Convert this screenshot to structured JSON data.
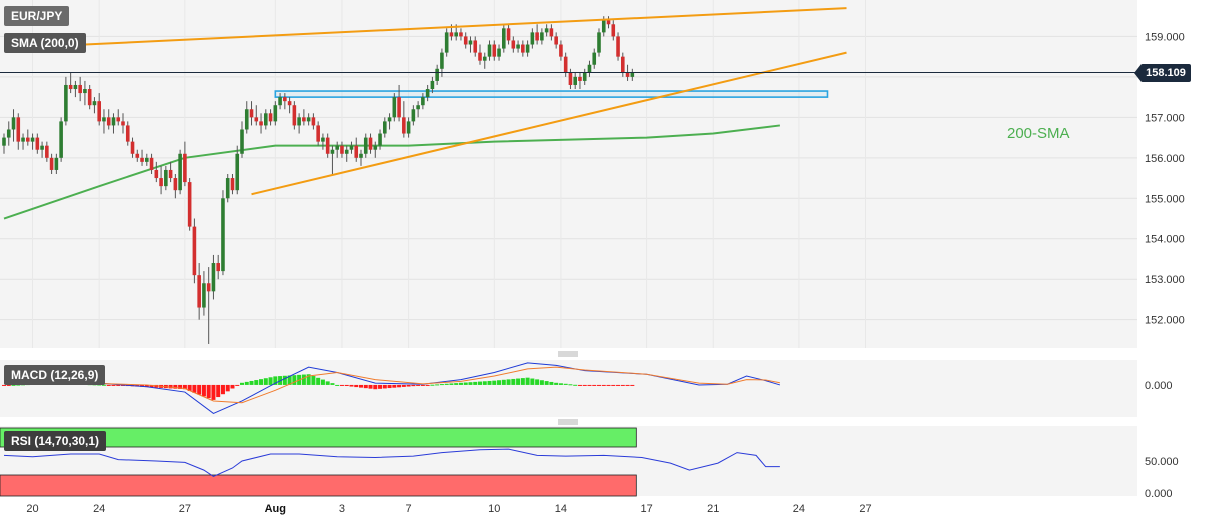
{
  "symbol_label": "EUR/JPY",
  "sma_indicator_label": "SMA (200,0)",
  "macd_indicator_label": "MACD (12,26,9)",
  "rsi_indicator_label": "RSI (14,70,30,1)",
  "current_price": "158.109",
  "sma_annotation": "200-SMA",
  "colors": {
    "bull": "#2e7d32",
    "bear": "#d32f2f",
    "sma": "#4caf50",
    "trendline": "#f39c12",
    "zone": "#29a3e0",
    "macd_line": "#1e3ad6",
    "signal_line": "#f07b2d",
    "hist_pos": "#27d827",
    "hist_neg": "#ff1a1a",
    "rsi_line": "#2a3bd8",
    "overbought": "#66ee66",
    "oversold": "#ff6b6b",
    "panel_bg": "#f4f4f4"
  },
  "chart_data": [
    {
      "type": "candlestick",
      "title": "EUR/JPY",
      "ylim": [
        151.3,
        159.9
      ],
      "y_ticks": [
        "152.000",
        "153.000",
        "154.000",
        "155.000",
        "156.000",
        "157.000",
        "158.000",
        "159.000"
      ],
      "x_ticks": [
        {
          "label": "20",
          "bar": 6
        },
        {
          "label": "24",
          "bar": 20
        },
        {
          "label": "27",
          "bar": 38
        },
        {
          "label": "Aug",
          "bar": 57
        },
        {
          "label": "3",
          "bar": 71
        },
        {
          "label": "7",
          "bar": 85
        },
        {
          "label": "10",
          "bar": 103
        },
        {
          "label": "14",
          "bar": 117
        },
        {
          "label": "17",
          "bar": 135
        },
        {
          "label": "21",
          "bar": 149
        },
        {
          "label": "24",
          "bar": 167
        },
        {
          "label": "27",
          "bar": 181
        }
      ],
      "candles": [
        [
          156.3,
          156.6,
          156.1,
          156.5
        ],
        [
          156.5,
          156.9,
          156.3,
          156.7
        ],
        [
          156.7,
          157.2,
          156.4,
          157.0
        ],
        [
          157.0,
          157.1,
          156.2,
          156.4
        ],
        [
          156.4,
          156.6,
          156.2,
          156.5
        ],
        [
          156.5,
          156.7,
          156.3,
          156.4
        ],
        [
          156.4,
          156.6,
          156.2,
          156.5
        ],
        [
          156.5,
          156.6,
          156.1,
          156.2
        ],
        [
          156.2,
          156.4,
          156.0,
          156.3
        ],
        [
          156.3,
          156.4,
          155.9,
          156.0
        ],
        [
          156.0,
          156.1,
          155.6,
          155.7
        ],
        [
          155.7,
          156.1,
          155.6,
          156.0
        ],
        [
          156.0,
          157.0,
          155.9,
          156.9
        ],
        [
          156.9,
          158.0,
          156.8,
          157.8
        ],
        [
          157.8,
          158.1,
          157.6,
          157.7
        ],
        [
          157.7,
          157.9,
          157.5,
          157.8
        ],
        [
          157.8,
          158.0,
          157.4,
          157.6
        ],
        [
          157.6,
          157.9,
          157.3,
          157.7
        ],
        [
          157.7,
          157.8,
          157.2,
          157.3
        ],
        [
          157.3,
          157.5,
          157.1,
          157.4
        ],
        [
          157.4,
          157.6,
          156.8,
          156.9
        ],
        [
          156.9,
          157.2,
          156.6,
          157.0
        ],
        [
          157.0,
          157.2,
          156.7,
          156.8
        ],
        [
          156.8,
          157.1,
          156.6,
          157.0
        ],
        [
          157.0,
          157.2,
          156.8,
          156.9
        ],
        [
          156.9,
          157.1,
          156.6,
          156.8
        ],
        [
          156.8,
          156.9,
          156.3,
          156.4
        ],
        [
          156.4,
          156.5,
          156.0,
          156.1
        ],
        [
          156.1,
          156.2,
          155.9,
          156.0
        ],
        [
          156.0,
          156.2,
          155.8,
          155.9
        ],
        [
          155.9,
          156.1,
          155.8,
          156.0
        ],
        [
          156.0,
          156.1,
          155.6,
          155.7
        ],
        [
          155.7,
          155.9,
          155.4,
          155.5
        ],
        [
          155.5,
          155.8,
          155.1,
          155.3
        ],
        [
          155.3,
          155.8,
          155.2,
          155.7
        ],
        [
          155.7,
          155.9,
          155.4,
          155.5
        ],
        [
          155.5,
          155.6,
          155.0,
          155.2
        ],
        [
          155.2,
          156.2,
          155.1,
          156.1
        ],
        [
          156.1,
          156.4,
          155.3,
          155.4
        ],
        [
          155.4,
          155.5,
          154.2,
          154.3
        ],
        [
          154.3,
          154.5,
          152.9,
          153.1
        ],
        [
          153.1,
          153.4,
          152.0,
          152.3
        ],
        [
          152.3,
          153.2,
          152.1,
          152.9
        ],
        [
          152.9,
          153.3,
          151.4,
          152.7
        ],
        [
          152.7,
          153.6,
          152.5,
          153.4
        ],
        [
          153.4,
          153.6,
          153.0,
          153.2
        ],
        [
          153.2,
          155.2,
          153.1,
          155.0
        ],
        [
          155.0,
          155.6,
          154.9,
          155.5
        ],
        [
          155.5,
          155.6,
          155.1,
          155.2
        ],
        [
          155.2,
          156.3,
          155.1,
          156.1
        ],
        [
          156.1,
          156.9,
          156.0,
          156.7
        ],
        [
          156.7,
          157.4,
          156.6,
          157.2
        ],
        [
          157.2,
          157.4,
          156.8,
          157.0
        ],
        [
          157.0,
          157.3,
          156.8,
          156.9
        ],
        [
          156.9,
          157.1,
          156.6,
          156.8
        ],
        [
          156.8,
          157.2,
          156.7,
          157.1
        ],
        [
          157.1,
          157.2,
          156.8,
          156.9
        ],
        [
          156.9,
          157.4,
          156.8,
          157.3
        ],
        [
          157.3,
          157.6,
          157.2,
          157.5
        ],
        [
          157.5,
          157.6,
          157.2,
          157.4
        ],
        [
          157.4,
          157.5,
          157.1,
          157.3
        ],
        [
          157.3,
          157.4,
          156.7,
          156.8
        ],
        [
          156.8,
          157.1,
          156.6,
          157.0
        ],
        [
          157.0,
          157.2,
          156.8,
          156.9
        ],
        [
          156.9,
          157.1,
          156.8,
          157.0
        ],
        [
          157.0,
          157.1,
          156.7,
          156.8
        ],
        [
          156.8,
          156.9,
          156.3,
          156.4
        ],
        [
          156.4,
          156.6,
          156.2,
          156.5
        ],
        [
          156.5,
          156.6,
          156.0,
          156.1
        ],
        [
          156.1,
          156.3,
          155.6,
          156.2
        ],
        [
          156.2,
          156.4,
          156.0,
          156.3
        ],
        [
          156.3,
          156.4,
          156.0,
          156.1
        ],
        [
          156.1,
          156.3,
          155.9,
          156.2
        ],
        [
          156.2,
          156.4,
          156.1,
          156.3
        ],
        [
          156.3,
          156.5,
          155.9,
          156.0
        ],
        [
          156.0,
          156.2,
          155.8,
          156.1
        ],
        [
          156.1,
          156.6,
          156.0,
          156.5
        ],
        [
          156.5,
          156.6,
          156.1,
          156.2
        ],
        [
          156.2,
          156.4,
          156.0,
          156.3
        ],
        [
          156.3,
          156.7,
          156.2,
          156.6
        ],
        [
          156.6,
          157.0,
          156.5,
          156.9
        ],
        [
          156.9,
          157.1,
          156.7,
          157.0
        ],
        [
          157.0,
          157.6,
          156.9,
          157.5
        ],
        [
          157.5,
          157.8,
          156.9,
          157.0
        ],
        [
          157.0,
          157.4,
          156.5,
          156.6
        ],
        [
          156.6,
          157.0,
          156.5,
          156.9
        ],
        [
          156.9,
          157.3,
          156.8,
          157.2
        ],
        [
          157.2,
          157.4,
          157.0,
          157.3
        ],
        [
          157.3,
          157.6,
          157.2,
          157.5
        ],
        [
          157.5,
          157.8,
          157.4,
          157.7
        ],
        [
          157.7,
          158.0,
          157.6,
          157.9
        ],
        [
          157.9,
          158.3,
          157.8,
          158.2
        ],
        [
          158.2,
          158.7,
          158.0,
          158.6
        ],
        [
          158.6,
          159.2,
          158.5,
          159.1
        ],
        [
          159.1,
          159.3,
          158.9,
          159.0
        ],
        [
          159.0,
          159.3,
          158.9,
          159.1
        ],
        [
          159.1,
          159.2,
          158.9,
          159.0
        ],
        [
          159.0,
          159.1,
          158.7,
          158.8
        ],
        [
          158.8,
          159.0,
          158.6,
          158.9
        ],
        [
          158.9,
          159.0,
          158.5,
          158.6
        ],
        [
          158.6,
          158.8,
          158.3,
          158.4
        ],
        [
          158.4,
          158.6,
          158.2,
          158.5
        ],
        [
          158.5,
          158.9,
          158.4,
          158.8
        ],
        [
          158.8,
          158.9,
          158.4,
          158.5
        ],
        [
          158.5,
          158.8,
          158.4,
          158.7
        ],
        [
          158.7,
          159.3,
          158.6,
          159.2
        ],
        [
          159.2,
          159.3,
          158.8,
          158.9
        ],
        [
          158.9,
          159.0,
          158.6,
          158.7
        ],
        [
          158.7,
          158.9,
          158.6,
          158.8
        ],
        [
          158.8,
          158.9,
          158.5,
          158.6
        ],
        [
          158.6,
          158.9,
          158.5,
          158.8
        ],
        [
          158.8,
          159.2,
          158.7,
          159.1
        ],
        [
          159.1,
          159.3,
          158.8,
          158.9
        ],
        [
          158.9,
          159.2,
          158.8,
          159.1
        ],
        [
          159.1,
          159.3,
          159.0,
          159.2
        ],
        [
          159.2,
          159.3,
          158.9,
          159.0
        ],
        [
          159.0,
          159.1,
          158.7,
          158.8
        ],
        [
          158.8,
          158.9,
          158.4,
          158.5
        ],
        [
          158.5,
          158.6,
          158.0,
          158.1
        ],
        [
          158.1,
          158.2,
          157.7,
          157.8
        ],
        [
          157.8,
          158.1,
          157.7,
          158.0
        ],
        [
          158.0,
          158.1,
          157.7,
          157.9
        ],
        [
          157.9,
          158.2,
          157.8,
          158.1
        ],
        [
          158.1,
          158.4,
          158.0,
          158.3
        ],
        [
          158.3,
          158.7,
          158.2,
          158.6
        ],
        [
          158.6,
          159.2,
          158.5,
          159.1
        ],
        [
          159.1,
          159.5,
          159.0,
          159.4
        ],
        [
          159.4,
          159.5,
          159.2,
          159.3
        ],
        [
          159.3,
          159.4,
          158.9,
          159.0
        ],
        [
          159.0,
          159.1,
          158.4,
          158.5
        ],
        [
          158.5,
          158.6,
          158.0,
          158.1
        ],
        [
          158.1,
          158.3,
          157.9,
          158.0
        ],
        [
          158.0,
          158.2,
          157.9,
          158.109
        ]
      ],
      "sma_200": [
        [
          0,
          154.5
        ],
        [
          20,
          155.3
        ],
        [
          38,
          156.0
        ],
        [
          57,
          156.3
        ],
        [
          85,
          156.3
        ],
        [
          103,
          156.4
        ],
        [
          135,
          156.5
        ],
        [
          149,
          156.6
        ],
        [
          163,
          156.8
        ]
      ],
      "trendlines": [
        {
          "from": [
            17,
            158.8
          ],
          "to": [
            177,
            159.7
          ]
        },
        {
          "from": [
            52,
            155.1
          ],
          "to": [
            177,
            158.6
          ]
        }
      ],
      "support_zone": {
        "from_bar": 57,
        "to_bar": 173,
        "low": 157.5,
        "high": 157.65
      },
      "last_price": 158.109
    },
    {
      "type": "line",
      "title": "MACD (12,26,9)",
      "y_ticks": [
        "0.000"
      ],
      "ylim": [
        -0.9,
        0.7
      ],
      "macd": [
        [
          0,
          0.05
        ],
        [
          10,
          0.1
        ],
        [
          20,
          0.05
        ],
        [
          30,
          -0.05
        ],
        [
          38,
          -0.2
        ],
        [
          44,
          -0.8
        ],
        [
          50,
          -0.45
        ],
        [
          57,
          0.05
        ],
        [
          64,
          0.5
        ],
        [
          70,
          0.35
        ],
        [
          78,
          0.05
        ],
        [
          88,
          0.02
        ],
        [
          96,
          0.15
        ],
        [
          103,
          0.35
        ],
        [
          110,
          0.62
        ],
        [
          116,
          0.55
        ],
        [
          122,
          0.4
        ],
        [
          135,
          0.3
        ],
        [
          146,
          0.0
        ],
        [
          152,
          0.02
        ],
        [
          156,
          0.25
        ],
        [
          160,
          0.12
        ],
        [
          163,
          0.0
        ]
      ],
      "signal": [
        [
          0,
          0.06
        ],
        [
          20,
          0.04
        ],
        [
          30,
          0.0
        ],
        [
          38,
          -0.1
        ],
        [
          44,
          -0.45
        ],
        [
          50,
          -0.5
        ],
        [
          57,
          -0.15
        ],
        [
          64,
          0.25
        ],
        [
          70,
          0.35
        ],
        [
          78,
          0.15
        ],
        [
          88,
          0.03
        ],
        [
          96,
          0.1
        ],
        [
          103,
          0.25
        ],
        [
          110,
          0.45
        ],
        [
          116,
          0.5
        ],
        [
          122,
          0.42
        ],
        [
          135,
          0.3
        ],
        [
          146,
          0.05
        ],
        [
          152,
          0.02
        ],
        [
          156,
          0.15
        ],
        [
          160,
          0.14
        ],
        [
          163,
          0.06
        ]
      ]
    },
    {
      "type": "line",
      "title": "RSI (14,70,30,1)",
      "y_ticks": [
        "50.000",
        "0.000"
      ],
      "ylim": [
        0,
        100
      ],
      "overbought": 70,
      "oversold": 30,
      "rsi": [
        [
          0,
          58
        ],
        [
          6,
          56
        ],
        [
          14,
          60
        ],
        [
          20,
          60
        ],
        [
          24,
          52
        ],
        [
          32,
          50
        ],
        [
          38,
          48
        ],
        [
          42,
          37
        ],
        [
          44,
          28
        ],
        [
          48,
          40
        ],
        [
          50,
          50
        ],
        [
          56,
          60
        ],
        [
          62,
          60
        ],
        [
          70,
          56
        ],
        [
          78,
          55
        ],
        [
          86,
          57
        ],
        [
          92,
          62
        ],
        [
          100,
          66
        ],
        [
          106,
          67
        ],
        [
          112,
          58
        ],
        [
          118,
          57
        ],
        [
          126,
          58
        ],
        [
          134,
          55
        ],
        [
          140,
          47
        ],
        [
          144,
          37
        ],
        [
          150,
          47
        ],
        [
          154,
          62
        ],
        [
          158,
          58
        ],
        [
          160,
          42
        ],
        [
          163,
          42
        ]
      ]
    }
  ]
}
